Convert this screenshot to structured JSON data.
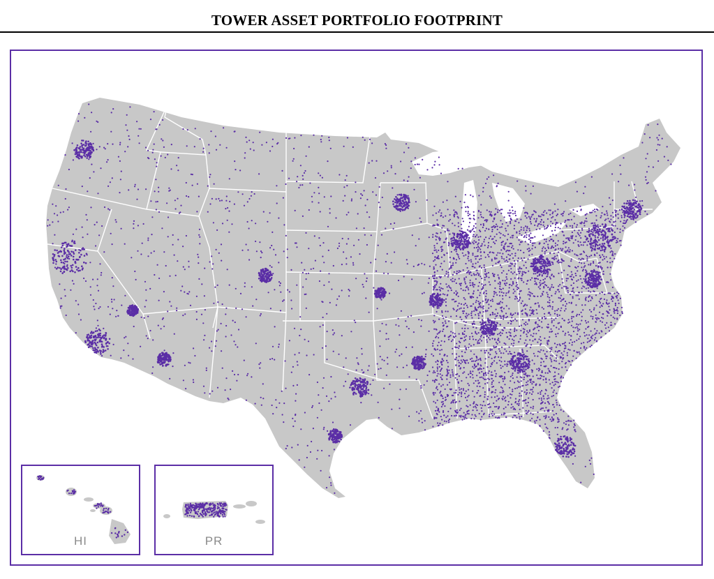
{
  "header": {
    "title": "TOWER ASSET PORTFOLIO FOOTPRINT"
  },
  "map": {
    "land_color": "#c8c8c8",
    "border_color": "#ffffff",
    "marker_color": "#5b2ea6",
    "frame_color": "#5b2ea6",
    "marker_icon": "tower-dot-icon"
  },
  "insets": [
    {
      "id": "hawaii",
      "label": "HI"
    },
    {
      "id": "puerto-rico",
      "label": "PR"
    }
  ]
}
